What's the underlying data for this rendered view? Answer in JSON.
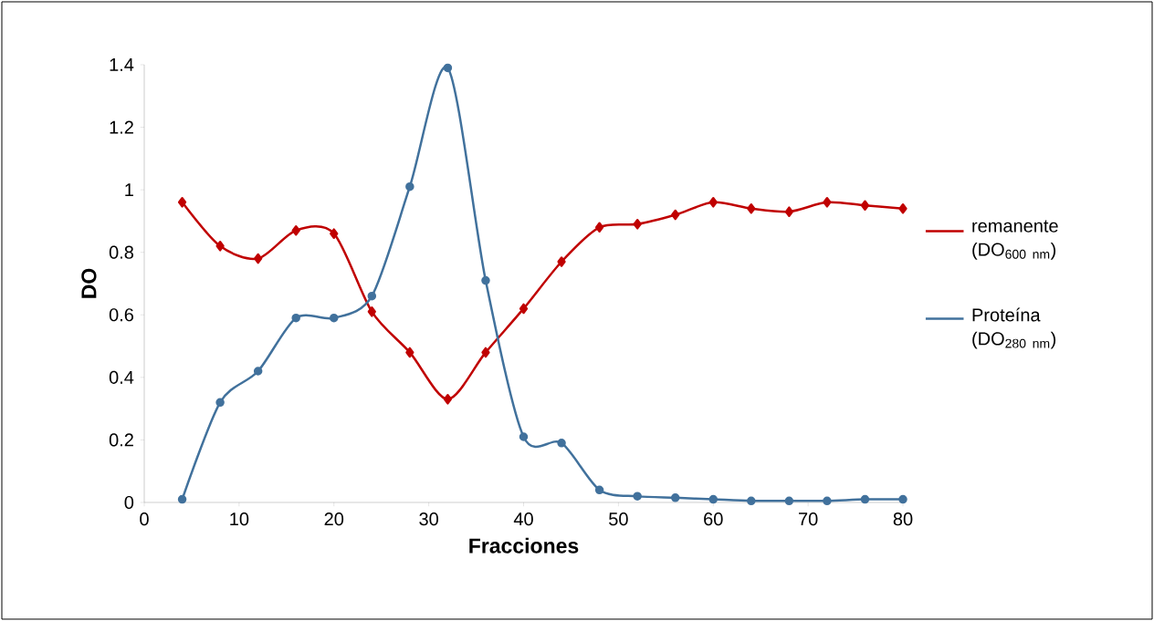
{
  "chart_data": {
    "type": "line",
    "xlabel": "Fracciones",
    "ylabel": "DO",
    "x": [
      4,
      8,
      12,
      16,
      20,
      24,
      28,
      32,
      36,
      40,
      44,
      48,
      52,
      56,
      60,
      64,
      68,
      72,
      76,
      80
    ],
    "series": [
      {
        "name": "remanente (DO$_{600 nm}$)",
        "color": "#c00000",
        "marker": "diamond",
        "values": [
          0.96,
          0.82,
          0.78,
          0.87,
          0.86,
          0.61,
          0.48,
          0.33,
          0.48,
          0.62,
          0.77,
          0.88,
          0.89,
          0.92,
          0.96,
          0.94,
          0.93,
          0.96,
          0.95,
          0.94
        ]
      },
      {
        "name": "Proteína (DO$_{280 nm}$)",
        "color": "#41719c",
        "marker": "circle",
        "values": [
          0.01,
          0.32,
          0.42,
          0.59,
          0.59,
          0.66,
          1.01,
          1.39,
          0.71,
          0.21,
          0.19,
          0.04,
          0.02,
          0.015,
          0.01,
          0.005,
          0.005,
          0.005,
          0.01,
          0.01
        ]
      }
    ],
    "xlim": [
      0,
      80
    ],
    "xticks": [
      0,
      10,
      20,
      30,
      40,
      50,
      60,
      70,
      80
    ],
    "ylim": [
      0,
      1.4
    ],
    "yticks": [
      0,
      0.2,
      0.4,
      0.6,
      0.8,
      1,
      1.2,
      1.4
    ],
    "grid": false,
    "legend": "right",
    "line_style": "solid"
  }
}
